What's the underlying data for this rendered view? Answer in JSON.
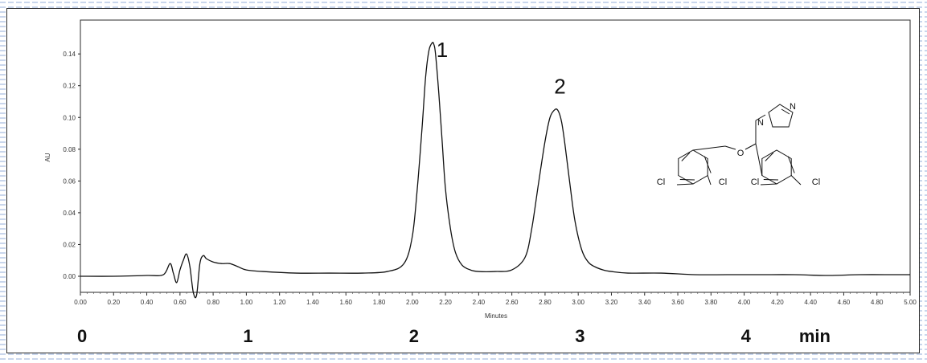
{
  "colors": {
    "background_pattern": "#c9d6ec",
    "plot_line": "#111111",
    "frame": "#2b2b2b"
  },
  "chart_data": {
    "type": "line",
    "title": "",
    "xlabel": "Minutes",
    "ylabel": "AU",
    "xlim": [
      0.0,
      5.0
    ],
    "ylim": [
      -0.01,
      0.15
    ],
    "grid": false,
    "x_ticks": [
      "0.00",
      "0.20",
      "0.40",
      "0.60",
      "0.80",
      "1.00",
      "1.20",
      "1.40",
      "1.60",
      "1.80",
      "2.00",
      "2.20",
      "2.40",
      "2.60",
      "2.80",
      "3.00",
      "3.20",
      "3.40",
      "3.60",
      "3.80",
      "4.00",
      "4.20",
      "4.40",
      "4.60",
      "4.80",
      "5.00"
    ],
    "y_ticks": [
      "0.00",
      "0.02",
      "0.04",
      "0.06",
      "0.08",
      "0.10",
      "0.12",
      "0.14"
    ],
    "series": [
      {
        "x": [
          0.0,
          0.2,
          0.4,
          0.5,
          0.54,
          0.56,
          0.58,
          0.6,
          0.62,
          0.64,
          0.66,
          0.68,
          0.7,
          0.72,
          0.74,
          0.76,
          0.8,
          0.85,
          0.9,
          0.95,
          1.0,
          1.1,
          1.3,
          1.5,
          1.7,
          1.85,
          1.95,
          2.0,
          2.03,
          2.06,
          2.08,
          2.1,
          2.12,
          2.13,
          2.14,
          2.16,
          2.18,
          2.2,
          2.23,
          2.26,
          2.3,
          2.35,
          2.4,
          2.5,
          2.6,
          2.68,
          2.72,
          2.76,
          2.8,
          2.83,
          2.86,
          2.88,
          2.9,
          2.92,
          2.95,
          2.98,
          3.02,
          3.06,
          3.1,
          3.15,
          3.2,
          3.3,
          3.5,
          3.7,
          3.9,
          4.1,
          4.3,
          4.5,
          4.7,
          4.9,
          5.0
        ],
        "y": [
          0.0,
          0.0,
          0.0005,
          0.001,
          0.008,
          0.002,
          -0.004,
          0.004,
          0.01,
          0.014,
          0.006,
          -0.01,
          -0.012,
          0.008,
          0.013,
          0.011,
          0.009,
          0.008,
          0.008,
          0.006,
          0.004,
          0.003,
          0.002,
          0.002,
          0.002,
          0.003,
          0.008,
          0.025,
          0.055,
          0.095,
          0.125,
          0.142,
          0.147,
          0.146,
          0.14,
          0.115,
          0.085,
          0.055,
          0.03,
          0.015,
          0.007,
          0.004,
          0.003,
          0.003,
          0.004,
          0.012,
          0.03,
          0.058,
          0.085,
          0.1,
          0.105,
          0.104,
          0.097,
          0.083,
          0.058,
          0.035,
          0.017,
          0.009,
          0.006,
          0.004,
          0.003,
          0.002,
          0.002,
          0.001,
          0.001,
          0.001,
          0.001,
          0.0005,
          0.001,
          0.001,
          0.001
        ]
      }
    ],
    "annotations": [
      {
        "text": "1",
        "x": 2.18,
        "y": 0.138
      },
      {
        "text": "2",
        "x": 2.89,
        "y": 0.115
      }
    ],
    "minute_labels": [
      {
        "text": "0",
        "x": 0.0
      },
      {
        "text": "1",
        "x": 1.0
      },
      {
        "text": "2",
        "x": 2.0
      },
      {
        "text": "3",
        "x": 3.0
      },
      {
        "text": "4",
        "x": 4.0
      },
      {
        "text": "min",
        "x": 4.35
      }
    ]
  },
  "structure": {
    "atoms": [
      "Cl",
      "Cl",
      "Cl",
      "Cl",
      "O",
      "N",
      "N"
    ]
  }
}
